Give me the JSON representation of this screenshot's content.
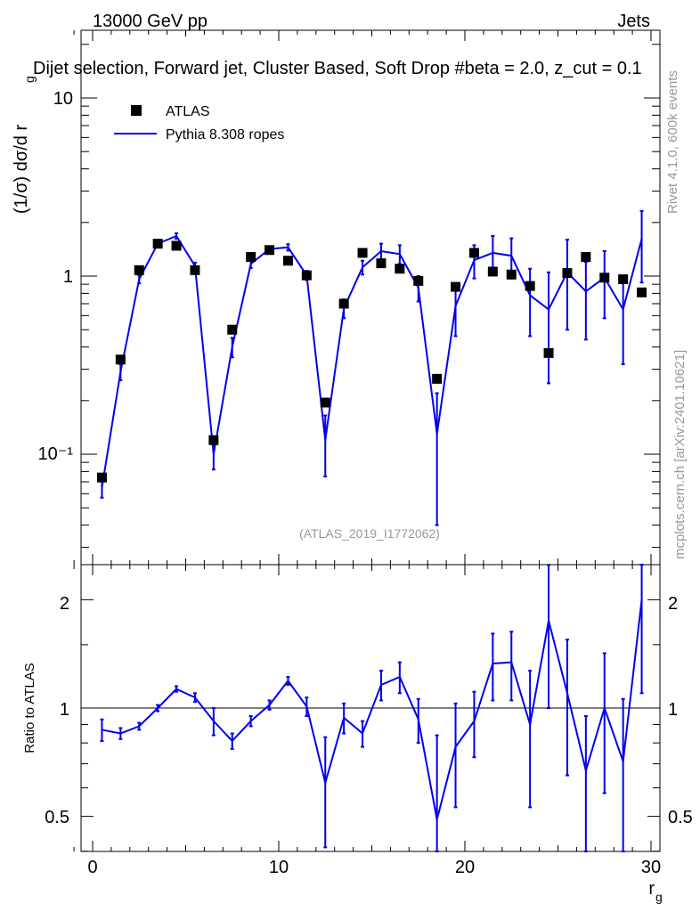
{
  "header": {
    "energy_label": "13000 GeV pp",
    "category_label": "Jets"
  },
  "chart_data": [
    {
      "type": "scatter",
      "title": "Dijet selection, Forward jet, Cluster Based, Soft Drop #beta = 2.0, z_cut = 0.1",
      "ylabel": "(1/σ) dσ/d r_g",
      "ylabel_main": "(1/σ) dσ/d r",
      "ylabel_sub": "g",
      "xlim": [
        -1,
        30.5
      ],
      "ylim": [
        0.025,
        25
      ],
      "yscale": "log",
      "y_ticks": [
        "10⁻¹",
        "1",
        "10"
      ],
      "legend": {
        "position": "top-left",
        "entries": [
          {
            "label": "ATLAS",
            "marker": "square",
            "color": "#000000"
          },
          {
            "label": "Pythia 8.308 ropes",
            "marker": "line",
            "color": "#0000ee"
          }
        ]
      },
      "reference": "(ATLAS_2019_I1772062)",
      "series": [
        {
          "name": "ATLAS",
          "x": [
            0.5,
            1.5,
            2.5,
            3.5,
            4.5,
            5.5,
            6.5,
            7.5,
            8.5,
            9.5,
            10.5,
            11.5,
            12.5,
            13.5,
            14.5,
            15.5,
            16.5,
            17.5,
            18.5,
            19.5,
            20.5,
            21.5,
            22.5,
            23.5,
            24.5,
            25.5,
            26.5,
            27.5,
            28.5,
            29.5
          ],
          "y": [
            0.074,
            0.34,
            1.08,
            1.52,
            1.48,
            1.08,
            0.12,
            0.5,
            1.28,
            1.4,
            1.22,
            1.01,
            0.195,
            0.7,
            1.35,
            1.18,
            1.1,
            0.94,
            0.265,
            0.87,
            1.35,
            1.06,
            1.02,
            0.88,
            0.37,
            1.04,
            1.28,
            0.98,
            0.96,
            0.81
          ]
        },
        {
          "name": "Pythia 8.308 ropes",
          "x": [
            0.5,
            1.5,
            2.5,
            3.5,
            4.5,
            5.5,
            6.5,
            7.5,
            8.5,
            9.5,
            10.5,
            11.5,
            12.5,
            13.5,
            14.5,
            15.5,
            16.5,
            17.5,
            18.5,
            19.5,
            20.5,
            21.5,
            22.5,
            23.5,
            24.5,
            25.5,
            26.5,
            27.5,
            28.5,
            29.5
          ],
          "y": [
            0.065,
            0.29,
            0.96,
            1.52,
            1.68,
            1.14,
            0.1,
            0.4,
            1.17,
            1.42,
            1.45,
            1.01,
            0.12,
            0.66,
            1.12,
            1.38,
            1.33,
            0.86,
            0.13,
            0.68,
            1.23,
            1.35,
            1.3,
            0.78,
            0.65,
            1.05,
            0.82,
            0.98,
            0.65,
            1.62
          ],
          "yerr": [
            0.008,
            0.03,
            0.05,
            0.05,
            0.06,
            0.05,
            0.018,
            0.05,
            0.06,
            0.05,
            0.06,
            0.06,
            0.045,
            0.08,
            0.1,
            0.14,
            0.16,
            0.14,
            0.09,
            0.22,
            0.26,
            0.33,
            0.33,
            0.32,
            0.4,
            0.55,
            0.38,
            0.4,
            0.33,
            0.7
          ]
        }
      ]
    },
    {
      "type": "line",
      "ylabel": "Ratio to ATLAS",
      "xlabel": "r_g",
      "xlabel_main": "r",
      "xlabel_sub": "g",
      "xlim": [
        -1,
        30.5
      ],
      "ylim": [
        0.38,
        2.45
      ],
      "yscale": "log",
      "x_ticks": [
        "0",
        "10",
        "20",
        "30"
      ],
      "y_ticks": [
        "0.5",
        "1",
        "2"
      ],
      "reference_line": 1,
      "series": [
        {
          "name": "Pythia 8.308 ropes / ATLAS",
          "x": [
            0.5,
            1.5,
            2.5,
            3.5,
            4.5,
            5.5,
            6.5,
            7.5,
            8.5,
            9.5,
            10.5,
            11.5,
            12.5,
            13.5,
            14.5,
            15.5,
            16.5,
            17.5,
            18.5,
            19.5,
            20.5,
            21.5,
            22.5,
            23.5,
            24.5,
            25.5,
            26.5,
            27.5,
            28.5,
            29.5
          ],
          "y": [
            0.87,
            0.85,
            0.89,
            1.0,
            1.13,
            1.07,
            0.92,
            0.81,
            0.92,
            1.02,
            1.19,
            1.01,
            0.62,
            0.94,
            0.85,
            1.16,
            1.22,
            0.93,
            0.49,
            0.78,
            0.92,
            1.33,
            1.34,
            0.9,
            1.75,
            1.1,
            0.67,
            1.0,
            0.71,
            2.0
          ],
          "yerr": [
            0.06,
            0.03,
            0.02,
            0.02,
            0.02,
            0.03,
            0.08,
            0.04,
            0.03,
            0.03,
            0.03,
            0.06,
            0.21,
            0.09,
            0.07,
            0.11,
            0.12,
            0.13,
            0.35,
            0.25,
            0.19,
            0.28,
            0.29,
            0.37,
            0.75,
            0.45,
            0.28,
            0.42,
            0.35,
            0.9
          ]
        }
      ]
    }
  ],
  "side_labels": {
    "rivet": "Rivet 4.1.0,  600k events",
    "mcplots": "mcplots.cern.ch [arXiv:2401.10621]"
  }
}
